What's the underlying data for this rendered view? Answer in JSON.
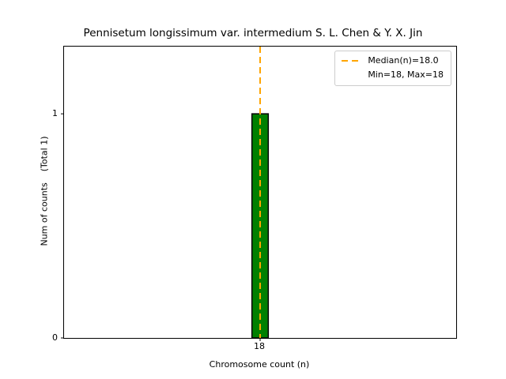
{
  "chart_data": {
    "type": "bar",
    "title": "Pennisetum longissimum var. intermedium S. L. Chen & Y. X. Jin",
    "xlabel": "Chromosome count (n)",
    "ylabel": "Num of counts    (Total 1)",
    "categories": [
      18
    ],
    "values": [
      1
    ],
    "total_counts": 1,
    "xlim": [
      15,
      21
    ],
    "ylim": [
      0,
      1.3
    ],
    "xticks": [
      18
    ],
    "xtick_labels": [
      "18"
    ],
    "yticks": [
      0,
      1
    ],
    "ytick_labels": [
      "0",
      "1"
    ],
    "grid": false,
    "bar_width_data": 0.25,
    "colors": {
      "bar_fill": "#008000",
      "bar_edge": "#000000",
      "median_line": "#FFA500",
      "axis": "#000000",
      "legend_border": "#cccccc"
    },
    "median_line": {
      "x": 18.0,
      "style": "dashed"
    },
    "legend": {
      "position": "upper right",
      "median_label": "Median(n)=18.0",
      "minmax_label": "Min=18, Max=18"
    }
  }
}
